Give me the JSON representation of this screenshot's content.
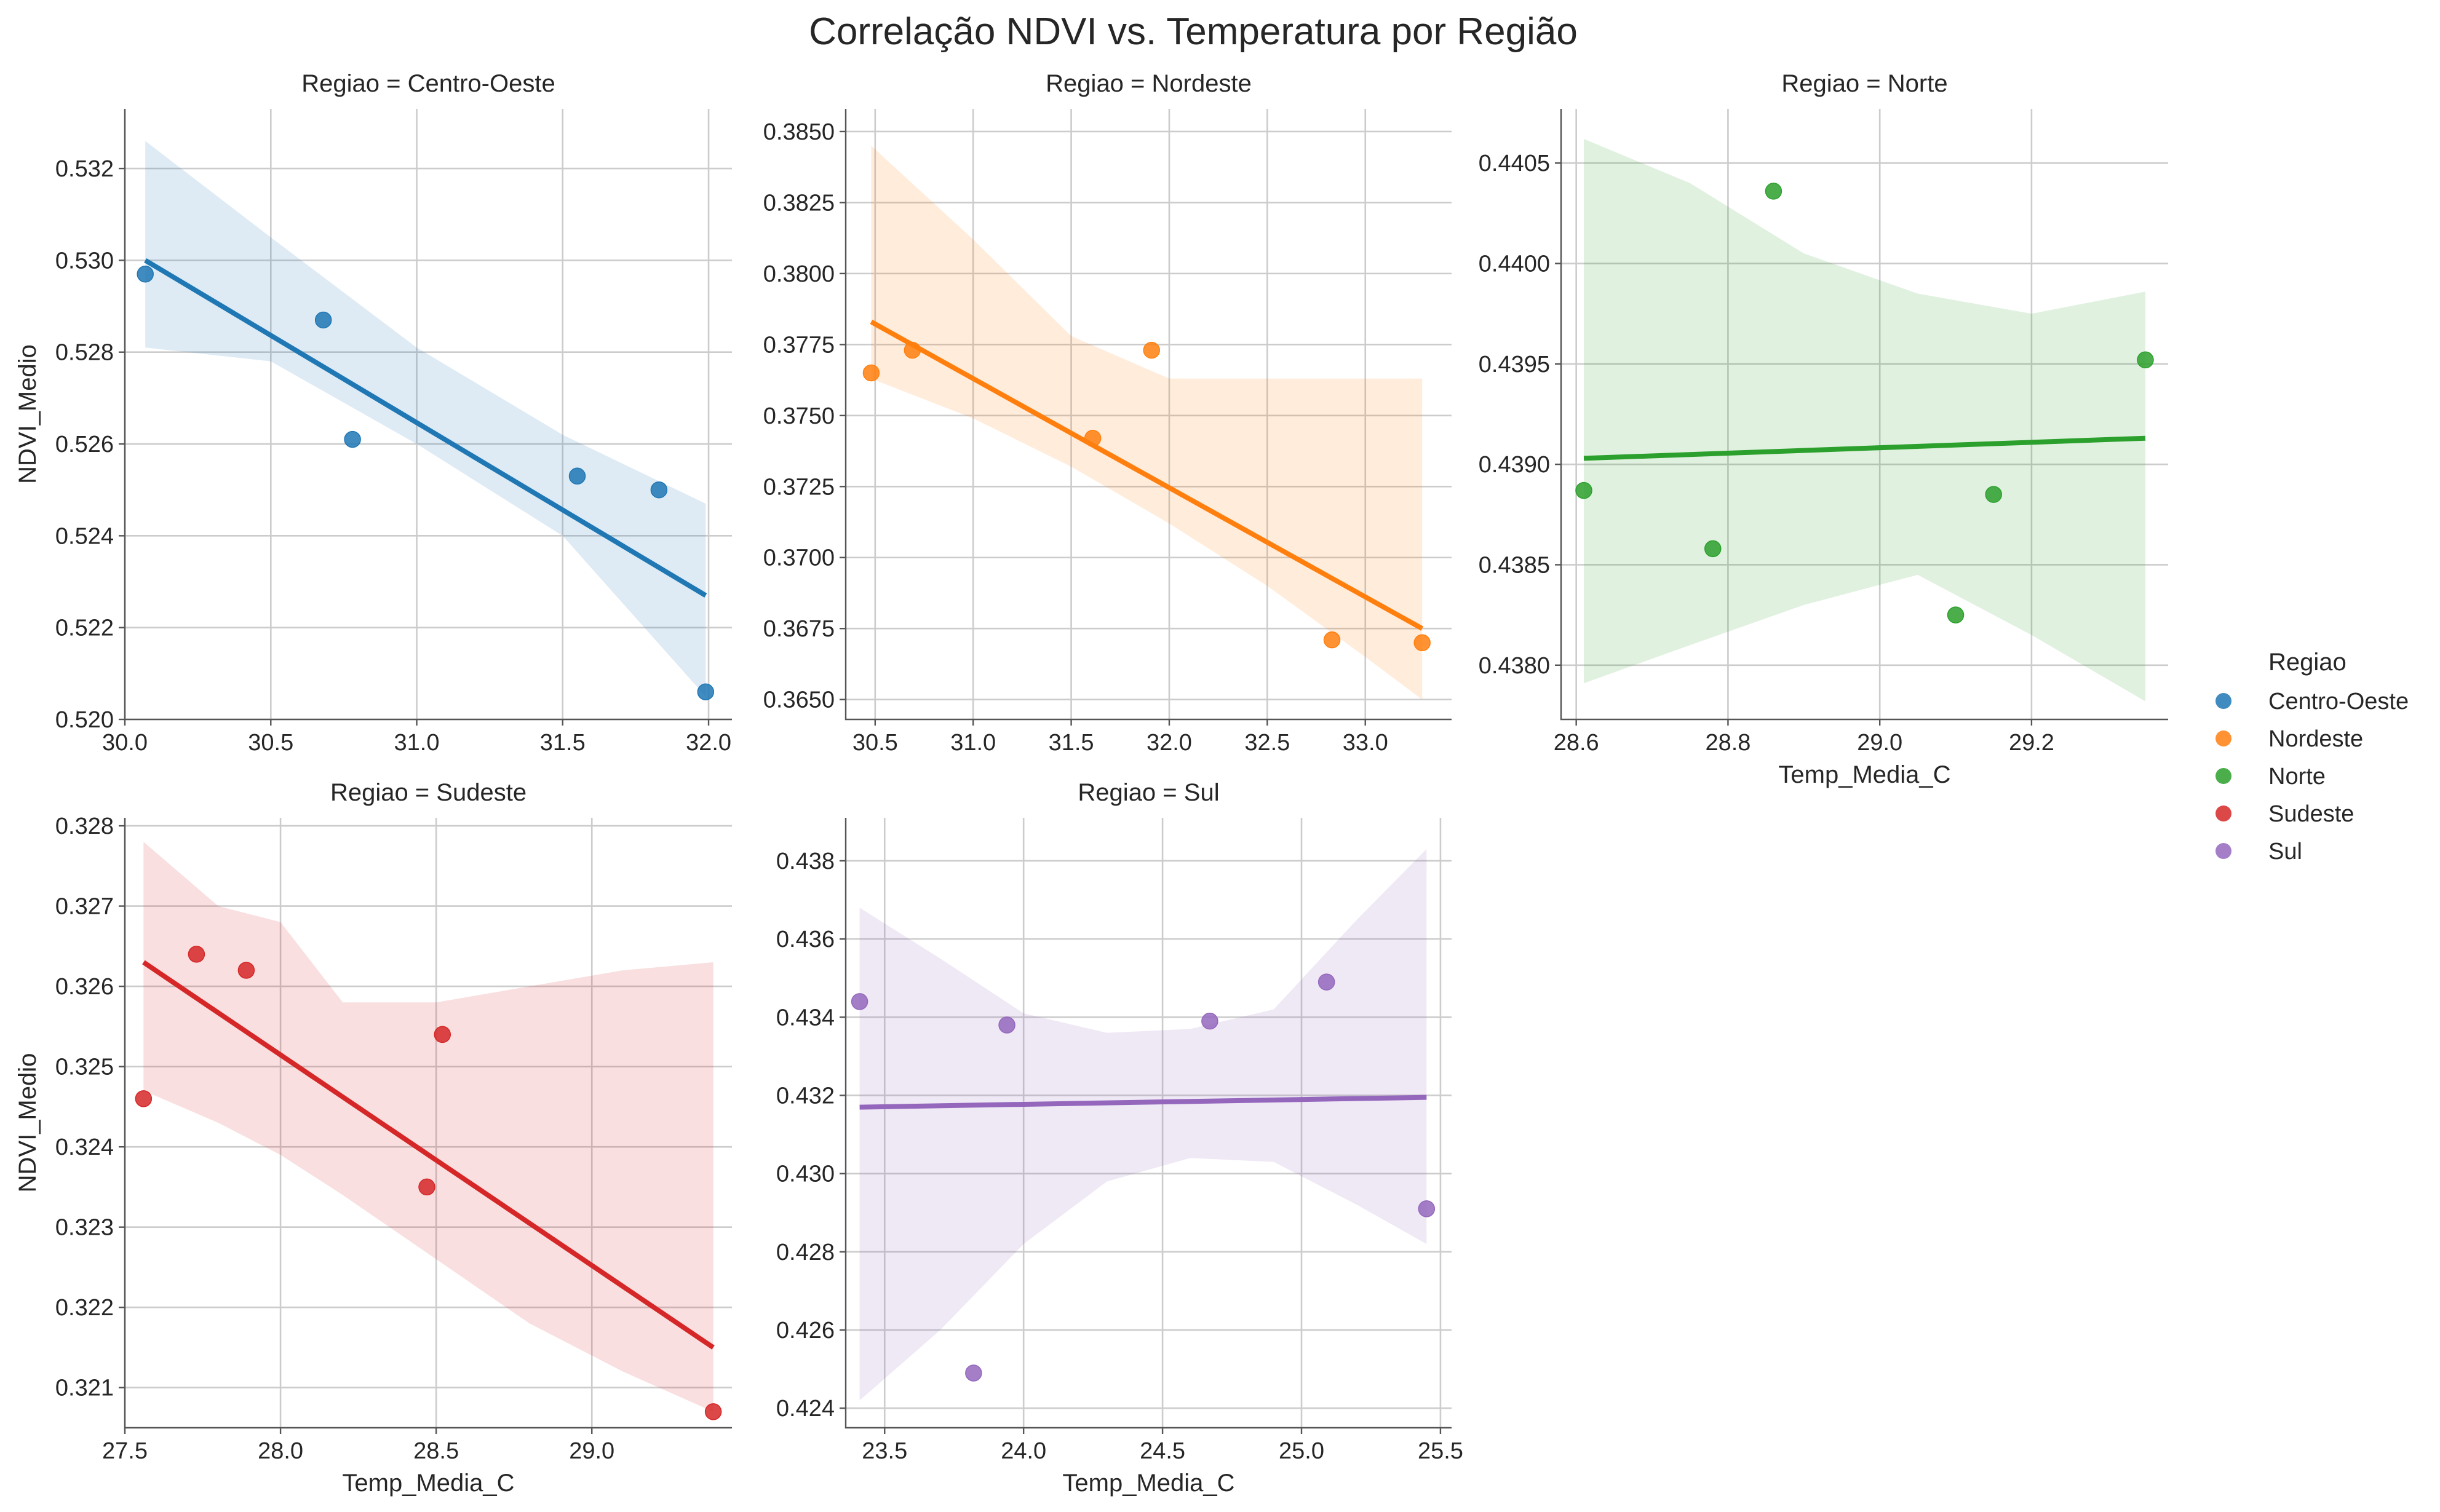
{
  "title": "Correlação NDVI vs. Temperatura por Região",
  "legend": {
    "title": "Regiao",
    "placement": "right",
    "entries": [
      {
        "label": "Centro-Oeste",
        "color": "#1f77b4"
      },
      {
        "label": "Nordeste",
        "color": "#ff7f0e"
      },
      {
        "label": "Norte",
        "color": "#2ca02c"
      },
      {
        "label": "Sudeste",
        "color": "#d62728"
      },
      {
        "label": "Sul",
        "color": "#9467bd"
      }
    ]
  },
  "chart_data": [
    {
      "type": "scatter",
      "title": "Regiao = Centro-Oeste",
      "xlabel": "",
      "ylabel": "NDVI_Medio",
      "color": "#1f77b4",
      "grid": true,
      "xlim": [
        30.0,
        32.08
      ],
      "ylim": [
        0.52,
        0.5333
      ],
      "xticks": [
        30.0,
        30.5,
        31.0,
        31.5,
        32.0
      ],
      "xtick_labels": [
        "30.0",
        "30.5",
        "31.0",
        "31.5",
        "32.0"
      ],
      "yticks": [
        0.52,
        0.522,
        0.524,
        0.526,
        0.528,
        0.53,
        0.532
      ],
      "ytick_labels": [
        "0.520",
        "0.522",
        "0.524",
        "0.526",
        "0.528",
        "0.530",
        "0.532"
      ],
      "points": [
        [
          30.07,
          0.5297
        ],
        [
          30.68,
          0.5287
        ],
        [
          30.78,
          0.5261
        ],
        [
          31.55,
          0.5253
        ],
        [
          31.83,
          0.525
        ],
        [
          31.99,
          0.5206
        ]
      ],
      "regression": {
        "x": [
          30.07,
          31.99
        ],
        "y": [
          0.53,
          0.5227
        ]
      },
      "ci_band": {
        "x": [
          30.07,
          30.5,
          31.0,
          31.5,
          31.99
        ],
        "lower": [
          0.5281,
          0.5278,
          0.526,
          0.524,
          0.5205
        ],
        "upper": [
          0.5326,
          0.5305,
          0.5281,
          0.5262,
          0.5247
        ]
      }
    },
    {
      "type": "scatter",
      "title": "Regiao = Nordeste",
      "xlabel": "",
      "ylabel": "",
      "color": "#ff7f0e",
      "grid": true,
      "xlim": [
        30.35,
        33.44
      ],
      "ylim": [
        0.3643,
        0.3858
      ],
      "xticks": [
        30.5,
        31.0,
        31.5,
        32.0,
        32.5,
        33.0
      ],
      "xtick_labels": [
        "30.5",
        "31.0",
        "31.5",
        "32.0",
        "32.5",
        "33.0"
      ],
      "yticks": [
        0.365,
        0.3675,
        0.37,
        0.3725,
        0.375,
        0.3775,
        0.38,
        0.3825,
        0.385
      ],
      "ytick_labels": [
        "0.3650",
        "0.3675",
        "0.3700",
        "0.3725",
        "0.3750",
        "0.3775",
        "0.3800",
        "0.3825",
        "0.3850"
      ],
      "points": [
        [
          30.48,
          0.3765
        ],
        [
          30.69,
          0.3773
        ],
        [
          31.61,
          0.3742
        ],
        [
          31.91,
          0.3773
        ],
        [
          32.83,
          0.3671
        ],
        [
          33.29,
          0.367
        ]
      ],
      "regression": {
        "x": [
          30.48,
          33.29
        ],
        "y": [
          0.3783,
          0.3675
        ]
      },
      "ci_band": {
        "x": [
          30.48,
          31.0,
          31.5,
          32.0,
          32.5,
          33.0,
          33.29
        ],
        "lower": [
          0.3763,
          0.3749,
          0.3732,
          0.3712,
          0.369,
          0.3665,
          0.365
        ],
        "upper": [
          0.3845,
          0.3812,
          0.3778,
          0.3763,
          0.3763,
          0.3763,
          0.3763
        ]
      }
    },
    {
      "type": "scatter",
      "title": "Regiao = Norte",
      "xlabel": "Temp_Media_C",
      "ylabel": "",
      "color": "#2ca02c",
      "grid": true,
      "xlim": [
        28.58,
        29.38
      ],
      "ylim": [
        0.43773,
        0.44077
      ],
      "xticks": [
        28.6,
        28.8,
        29.0,
        29.2
      ],
      "xtick_labels": [
        "28.6",
        "28.8",
        "29.0",
        "29.2"
      ],
      "yticks": [
        0.438,
        0.4385,
        0.439,
        0.4395,
        0.44,
        0.4405
      ],
      "ytick_labels": [
        "0.4380",
        "0.4385",
        "0.4390",
        "0.4395",
        "0.4400",
        "0.4405"
      ],
      "points": [
        [
          28.61,
          0.43887
        ],
        [
          28.78,
          0.43858
        ],
        [
          28.86,
          0.44036
        ],
        [
          29.1,
          0.43825
        ],
        [
          29.15,
          0.43885
        ],
        [
          29.35,
          0.43952
        ]
      ],
      "regression": {
        "x": [
          28.61,
          29.35
        ],
        "y": [
          0.43903,
          0.43913
        ]
      },
      "ci_band": {
        "x": [
          28.61,
          28.75,
          28.9,
          29.05,
          29.2,
          29.35
        ],
        "lower": [
          0.43791,
          0.4381,
          0.4383,
          0.43845,
          0.43815,
          0.43782
        ],
        "upper": [
          0.44062,
          0.4404,
          0.44005,
          0.43985,
          0.43975,
          0.43986
        ]
      }
    },
    {
      "type": "scatter",
      "title": "Regiao = Sudeste",
      "xlabel": "Temp_Media_C",
      "ylabel": "NDVI_Medio",
      "color": "#d62728",
      "grid": true,
      "xlim": [
        27.5,
        29.45
      ],
      "ylim": [
        0.3205,
        0.3281
      ],
      "xticks": [
        27.5,
        28.0,
        28.5,
        29.0
      ],
      "xtick_labels": [
        "27.5",
        "28.0",
        "28.5",
        "29.0"
      ],
      "yticks": [
        0.321,
        0.322,
        0.323,
        0.324,
        0.325,
        0.326,
        0.327,
        0.328
      ],
      "ytick_labels": [
        "0.321",
        "0.322",
        "0.323",
        "0.324",
        "0.325",
        "0.326",
        "0.327",
        "0.328"
      ],
      "points": [
        [
          27.56,
          0.3246
        ],
        [
          27.73,
          0.3264
        ],
        [
          27.89,
          0.3262
        ],
        [
          28.47,
          0.3235
        ],
        [
          28.52,
          0.3254
        ],
        [
          29.39,
          0.3207
        ]
      ],
      "regression": {
        "x": [
          27.56,
          29.39
        ],
        "y": [
          0.3263,
          0.3215
        ]
      },
      "ci_band": {
        "x": [
          27.56,
          27.8,
          28.0,
          28.2,
          28.5,
          28.8,
          29.1,
          29.39
        ],
        "lower": [
          0.3247,
          0.3243,
          0.3239,
          0.3234,
          0.3226,
          0.3218,
          0.3212,
          0.3207
        ],
        "upper": [
          0.3278,
          0.327,
          0.3268,
          0.3258,
          0.3258,
          0.326,
          0.3262,
          0.3263
        ]
      }
    },
    {
      "type": "scatter",
      "title": "Regiao = Sul",
      "xlabel": "Temp_Media_C",
      "ylabel": "",
      "color": "#9467bd",
      "grid": true,
      "xlim": [
        23.36,
        25.54
      ],
      "ylim": [
        0.4235,
        0.4391
      ],
      "xticks": [
        23.5,
        24.0,
        24.5,
        25.0,
        25.5
      ],
      "xtick_labels": [
        "23.5",
        "24.0",
        "24.5",
        "25.0",
        "25.5"
      ],
      "yticks": [
        0.424,
        0.426,
        0.428,
        0.43,
        0.432,
        0.434,
        0.436,
        0.438
      ],
      "ytick_labels": [
        "0.424",
        "0.426",
        "0.428",
        "0.430",
        "0.432",
        "0.434",
        "0.436",
        "0.438"
      ],
      "points": [
        [
          23.41,
          0.4344
        ],
        [
          23.82,
          0.4249
        ],
        [
          23.94,
          0.4338
        ],
        [
          24.67,
          0.4339
        ],
        [
          25.09,
          0.4349
        ],
        [
          25.45,
          0.4291
        ]
      ],
      "regression": {
        "x": [
          23.41,
          25.45
        ],
        "y": [
          0.4317,
          0.43195
        ]
      },
      "ci_band": {
        "x": [
          23.41,
          23.7,
          24.0,
          24.3,
          24.6,
          24.9,
          25.2,
          25.45
        ],
        "lower": [
          0.4242,
          0.426,
          0.4282,
          0.4298,
          0.4304,
          0.4303,
          0.4292,
          0.4282
        ],
        "upper": [
          0.4368,
          0.4355,
          0.4341,
          0.4336,
          0.4337,
          0.4342,
          0.4365,
          0.4383
        ]
      }
    }
  ]
}
